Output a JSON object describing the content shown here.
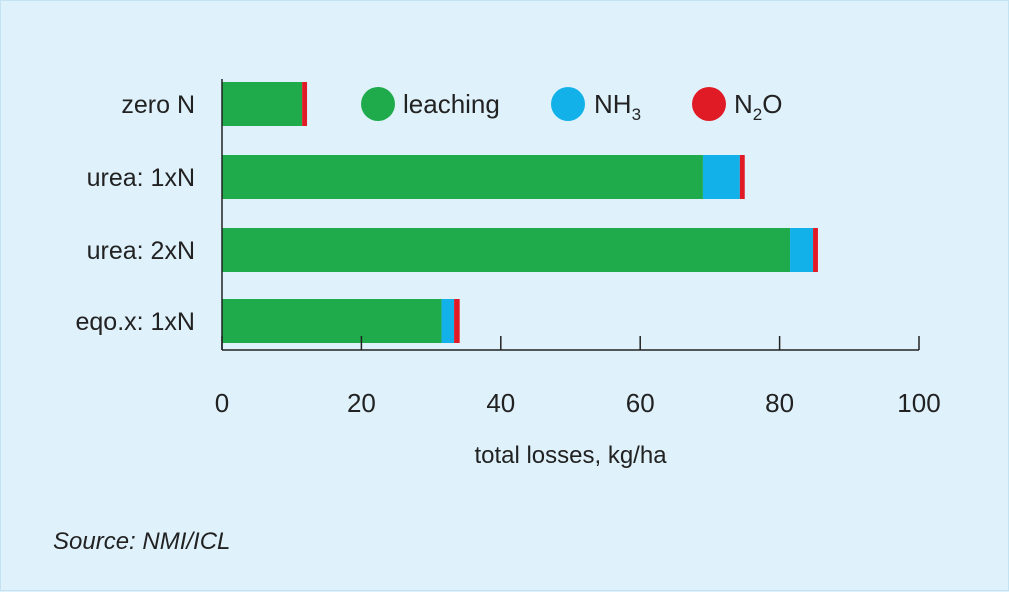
{
  "chart_data": {
    "type": "bar",
    "orientation": "horizontal",
    "stacked": true,
    "categories": [
      "zero N",
      "urea: 1xN",
      "urea: 2xN",
      "eqo.x: 1xN"
    ],
    "series": [
      {
        "name": "leaching",
        "name_main": "leaching",
        "name_sub": "",
        "name_tail": "",
        "color": "#1faa4b",
        "values": [
          11.5,
          69,
          81.5,
          31.5
        ]
      },
      {
        "name": "NH3",
        "name_main": "NH",
        "name_sub": "3",
        "name_tail": "",
        "color": "#12b1ea",
        "values": [
          0,
          5.3,
          3.3,
          1.8
        ]
      },
      {
        "name": "N2O",
        "name_main": "N",
        "name_sub": "2",
        "name_tail": "O",
        "color": "#e11b26",
        "values": [
          0.7,
          0.7,
          0.7,
          0.8
        ]
      }
    ],
    "xlim": [
      0,
      100
    ],
    "xticks": [
      "0",
      "20",
      "40",
      "60",
      "80",
      "100"
    ],
    "xlabel": "total losses, kg/ha",
    "ylabel": "",
    "title": "",
    "legend_position": "top",
    "grid": false
  },
  "source_text": "Source: NMI/ICL"
}
